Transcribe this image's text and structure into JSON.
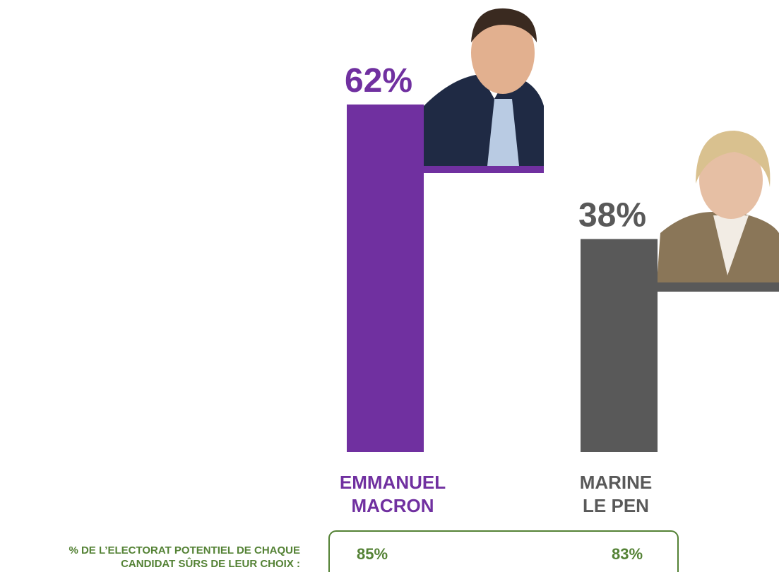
{
  "chart_data": {
    "type": "bar",
    "categories": [
      "EMMANUEL\nMACRON",
      "MARINE\nLE PEN"
    ],
    "values": [
      62,
      38
    ],
    "value_labels": [
      "62%",
      "38%"
    ],
    "colors": [
      "#7030a0",
      "#595959"
    ]
  },
  "note": {
    "text": "% DE L’ELECTORAT POTENTIEL DE CHAQUE\nCANDIDAT SÛRS DE LEUR CHOIX :",
    "values": [
      "85%",
      "83%"
    ],
    "color": "#548235"
  }
}
